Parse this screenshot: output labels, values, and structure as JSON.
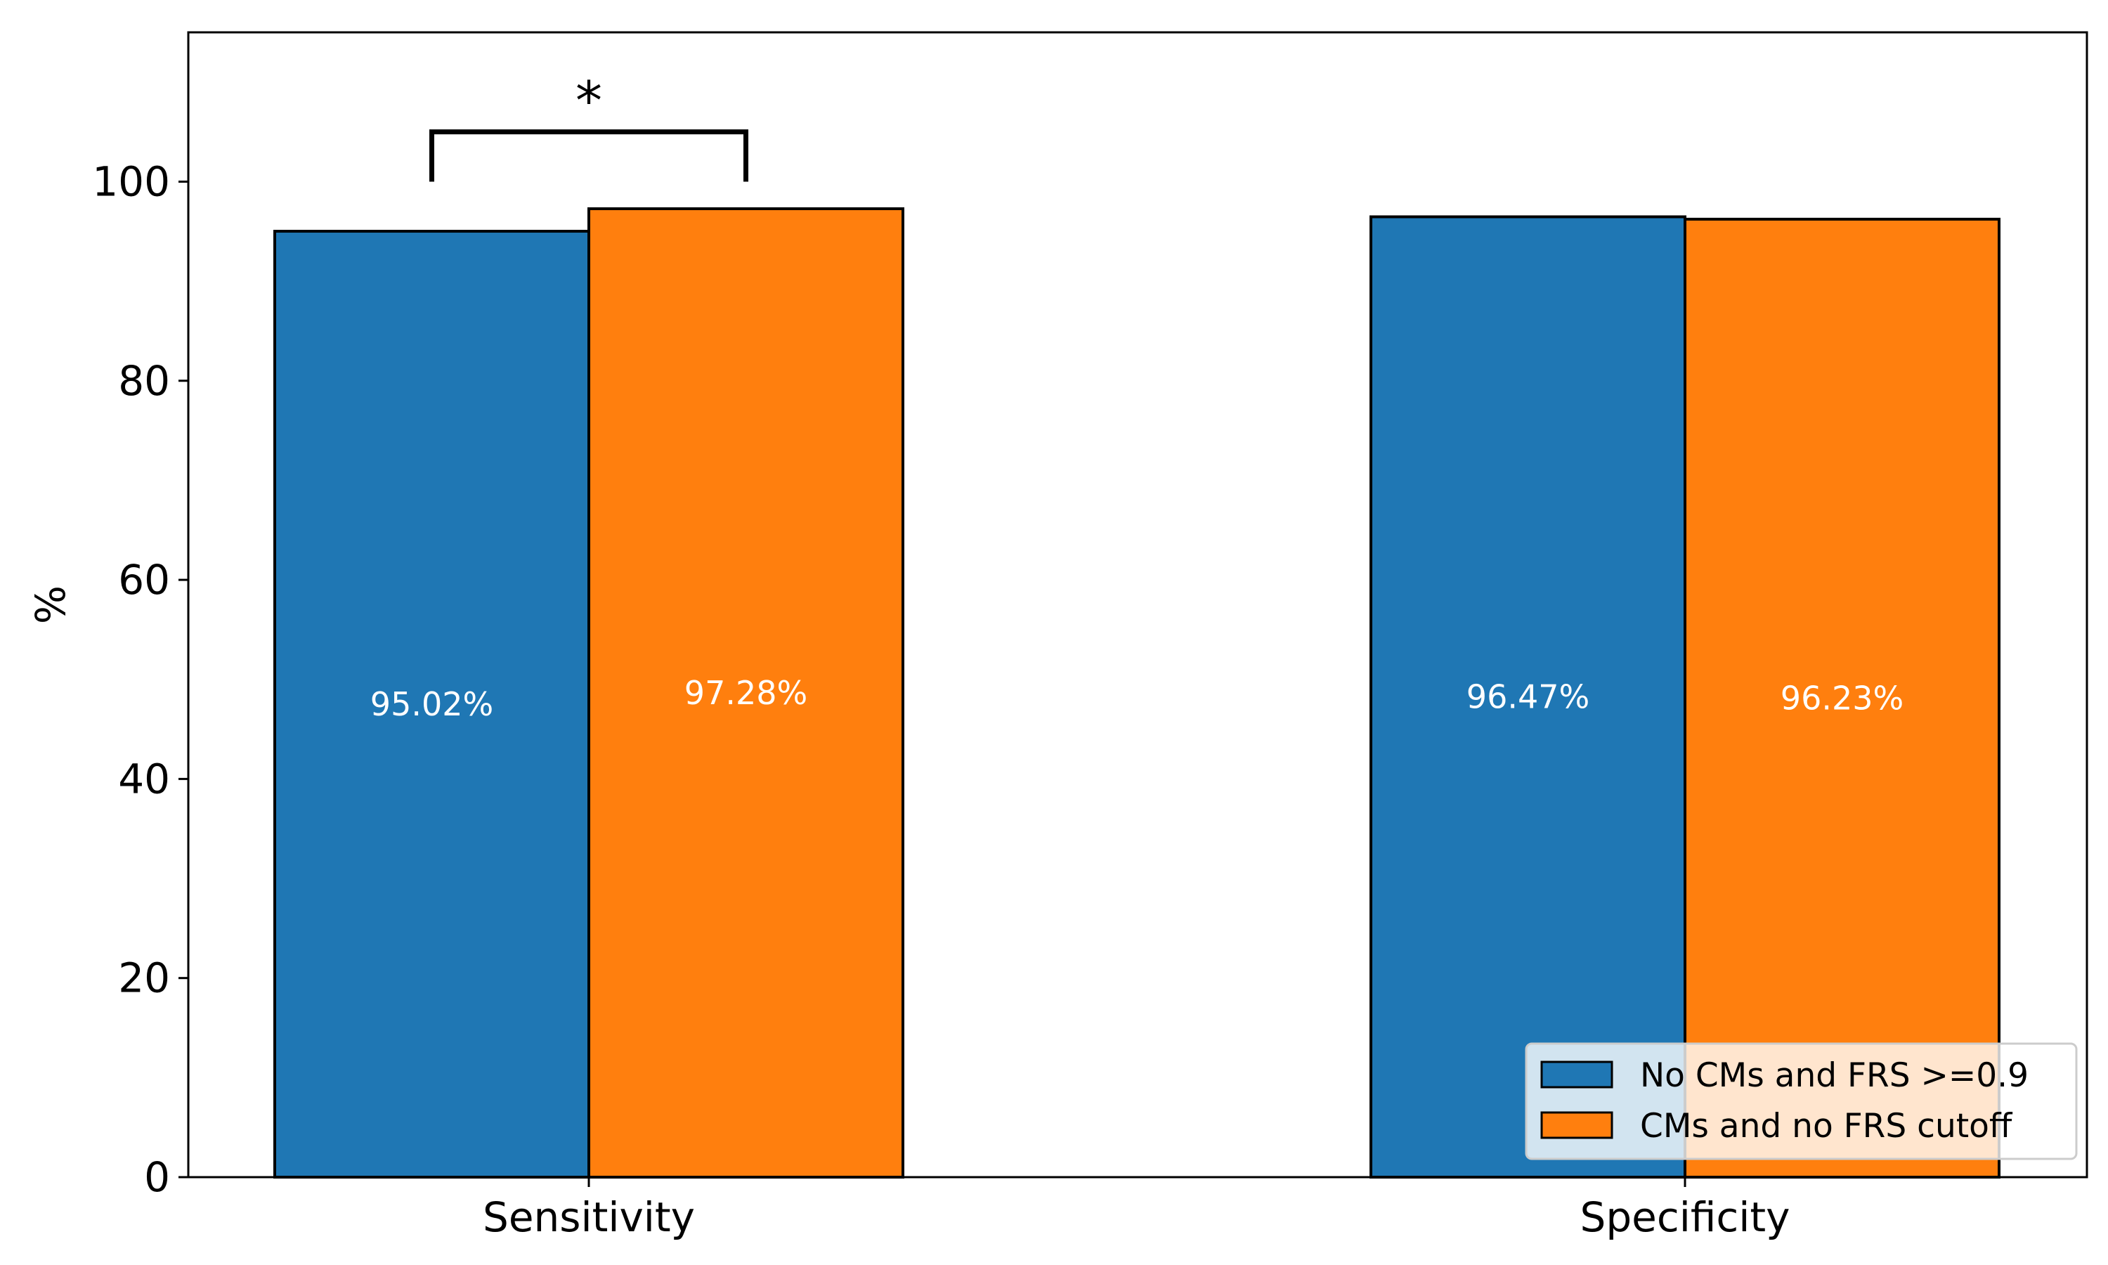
{
  "chart_data": {
    "type": "bar",
    "categories": [
      "Sensitivity",
      "Specificity"
    ],
    "series": [
      {
        "name": "No CMs and FRS >=0.9",
        "color": "#1f77b4",
        "values": [
          95.02,
          96.47
        ],
        "labels": [
          "95.02%",
          "96.47%"
        ]
      },
      {
        "name": "CMs and no FRS cutoff",
        "color": "#ff7f0e",
        "values": [
          97.28,
          96.23
        ],
        "labels": [
          "97.28%",
          "96.23%"
        ]
      }
    ],
    "title": "",
    "xlabel": "",
    "ylabel": "%",
    "ylim": [
      0,
      115
    ],
    "yticks": [
      0,
      20,
      40,
      60,
      80,
      100
    ],
    "grid": false,
    "legend_position": "lower-right",
    "annotations": [
      {
        "text": "*",
        "type": "significance-bracket",
        "category": "Sensitivity",
        "between_series": [
          0,
          1
        ],
        "bracket_value": 105,
        "bracket_leg_bottom": 100
      }
    ]
  }
}
